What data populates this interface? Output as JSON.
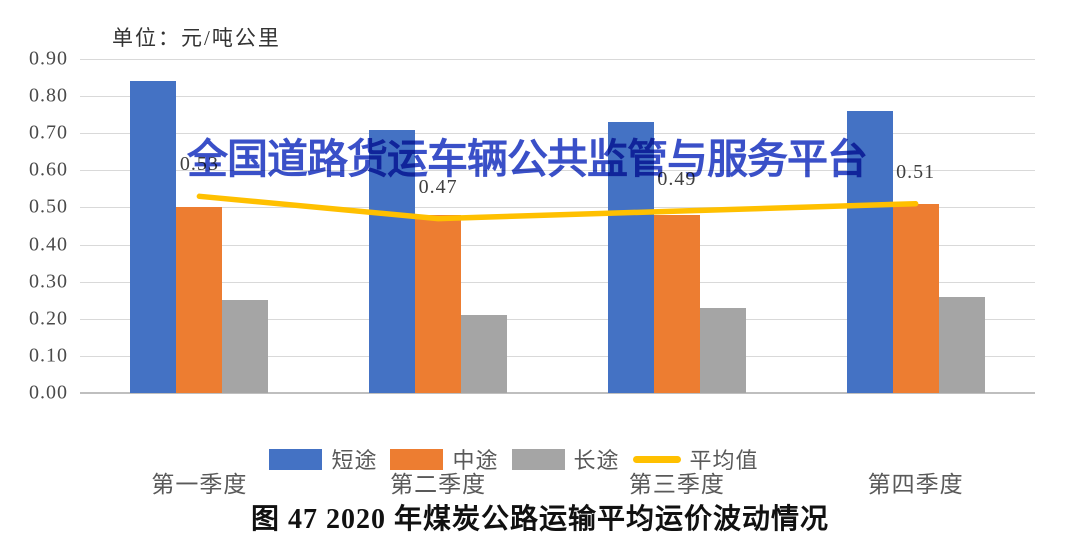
{
  "unit_label": "单位：元/吨公里",
  "watermark_text": "全国道路货运车辆公共监管与服务平台",
  "caption": "图 47 2020 年煤炭公路运输平均运价波动情况",
  "colors": {
    "short_haul_blue": "#4472C4",
    "mid_haul_orange": "#ED7D31",
    "long_haul_gray": "#A5A5A5",
    "average_yellow": "#FFC000",
    "watermark_blue": "#3A50C8",
    "gridline": "#D9D9D9",
    "axis_line": "#BFBFBF"
  },
  "chart_data": {
    "type": "bar",
    "subtype": "grouped bars with overlay line",
    "title": "图 47 2020 年煤炭公路运输平均运价波动情况",
    "unit": "单位：元/吨公里",
    "categories": [
      "第一季度",
      "第二季度",
      "第三季度",
      "第四季度"
    ],
    "category_keys": [
      "q1",
      "q2",
      "q3",
      "q4"
    ],
    "series": [
      {
        "name": "短途",
        "key": "short-haul",
        "type": "bar",
        "color": "#4472C4",
        "values": [
          0.84,
          0.71,
          0.73,
          0.76
        ]
      },
      {
        "name": "中途",
        "key": "mid-haul",
        "type": "bar",
        "color": "#ED7D31",
        "values": [
          0.5,
          0.48,
          0.48,
          0.51
        ]
      },
      {
        "name": "长途",
        "key": "long-haul",
        "type": "bar",
        "color": "#A5A5A5",
        "values": [
          0.25,
          0.21,
          0.23,
          0.26
        ]
      },
      {
        "name": "平均值",
        "key": "average",
        "type": "line",
        "color": "#FFC000",
        "values": [
          0.53,
          0.47,
          0.49,
          0.51
        ],
        "point_labels": [
          "0.53",
          "0.47",
          "0.49",
          "0.51"
        ]
      }
    ],
    "ylim": [
      0,
      0.9
    ],
    "ytick_labels": [
      "0.00",
      "0.10",
      "0.20",
      "0.30",
      "0.40",
      "0.50",
      "0.60",
      "0.70",
      "0.80",
      "0.90"
    ],
    "grid": true,
    "legend_position": "bottom"
  }
}
